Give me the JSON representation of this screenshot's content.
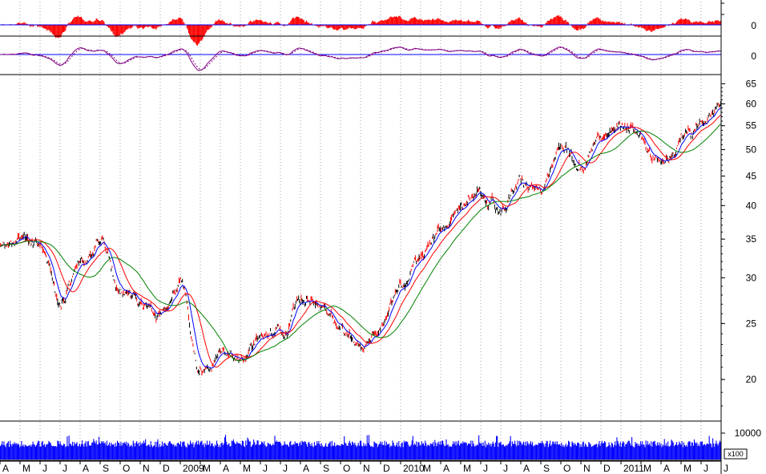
{
  "chart_data": {
    "type": "line",
    "title": "",
    "xlabel": "",
    "ylabel": "",
    "scale": "log",
    "ylim": [
      17,
      67
    ],
    "grid": "vertical-dotted",
    "x_labels": [
      "A",
      "M",
      "J",
      "J",
      "A",
      "S",
      "O",
      "N",
      "D",
      "2009",
      "M",
      "A",
      "M",
      "J",
      "J",
      "A",
      "S",
      "O",
      "N",
      "D",
      "2010",
      "M",
      "A",
      "M",
      "J",
      "J",
      "A",
      "S",
      "O",
      "N",
      "D",
      "2011",
      "M",
      "A",
      "M",
      "J",
      "J"
    ],
    "price_ticks": [
      "65",
      "60",
      "55",
      "50",
      "45",
      "40",
      "35",
      "30",
      "25",
      "20"
    ],
    "price_tick_values": [
      65,
      60,
      55,
      50,
      45,
      40,
      35,
      30,
      25,
      20
    ],
    "ind1_tick": "0",
    "ind2_tick": "0",
    "volume_tick": "10000",
    "volume_multiplier": "x100",
    "price_anchors": [
      [
        0,
        34
      ],
      [
        1,
        35
      ],
      [
        2,
        34
      ],
      [
        3,
        27
      ],
      [
        4,
        32
      ],
      [
        5,
        35
      ],
      [
        6,
        29
      ],
      [
        7,
        27
      ],
      [
        8,
        26
      ],
      [
        9,
        29
      ],
      [
        10,
        20
      ],
      [
        11,
        22
      ],
      [
        12,
        22
      ],
      [
        13,
        23
      ],
      [
        14,
        25
      ],
      [
        15,
        27
      ],
      [
        16,
        27
      ],
      [
        17,
        24
      ],
      [
        18,
        23
      ],
      [
        19,
        25
      ],
      [
        20,
        29
      ],
      [
        21,
        33
      ],
      [
        22,
        36
      ],
      [
        23,
        40
      ],
      [
        24,
        43
      ],
      [
        25,
        39
      ],
      [
        26,
        45
      ],
      [
        27,
        43
      ],
      [
        28,
        50
      ],
      [
        29,
        47
      ],
      [
        30,
        53
      ],
      [
        31,
        56
      ],
      [
        32,
        52
      ],
      [
        33,
        48
      ],
      [
        34,
        52
      ],
      [
        35,
        55
      ],
      [
        36,
        60
      ]
    ],
    "series": [
      {
        "color": "#000000"
      },
      {
        "color": "#ff0000"
      },
      {
        "color": "#0000ff"
      },
      {
        "color": "#ff0000"
      },
      {
        "color": "#008000"
      }
    ],
    "colors": {
      "indicator_bars": "#ff0000",
      "zero_line": "#0000ff",
      "oscillator": "#800080",
      "volume": "#0000ff"
    }
  }
}
